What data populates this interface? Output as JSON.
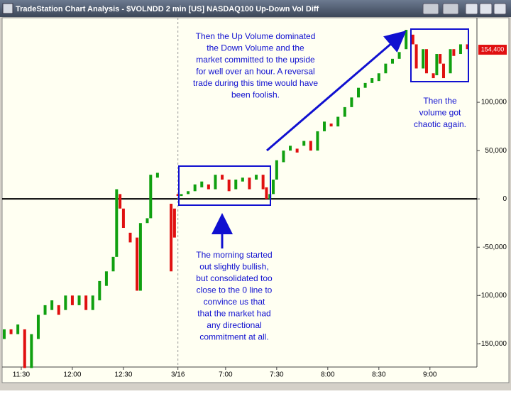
{
  "window_title": "TradeStation Chart Analysis - $VOLNDD 2 min [US] NASDAQ100 Up-Down Vol Diff",
  "chart_data": {
    "type": "bars",
    "bars": {
      "x": [
        0,
        2,
        4,
        6,
        8,
        10,
        12,
        14,
        16,
        18,
        20,
        22,
        24,
        26,
        28,
        30,
        32,
        33,
        34,
        35,
        37,
        39,
        40,
        42,
        43,
        45,
        49,
        50,
        51,
        52,
        54,
        56,
        58,
        60,
        62,
        64,
        66,
        68,
        70,
        72,
        74,
        76,
        77,
        78,
        79,
        80,
        82,
        84,
        86,
        88,
        90,
        92,
        94,
        96,
        98,
        100,
        102,
        104,
        106,
        108,
        110,
        112,
        114,
        116,
        118,
        120,
        121,
        123,
        124,
        126,
        127,
        128,
        129,
        131,
        132,
        134,
        136
      ],
      "open": [
        -145000,
        -135000,
        -140000,
        -135000,
        -175000,
        -145000,
        -120000,
        -115000,
        -110000,
        -115000,
        -100000,
        -110000,
        -100000,
        -115000,
        -105000,
        -90000,
        -75000,
        -60000,
        5000,
        -10000,
        -35000,
        -40000,
        -95000,
        -25000,
        -20000,
        22000,
        -5000,
        -10000,
        5000,
        3000,
        5000,
        8000,
        12000,
        15000,
        10000,
        25000,
        20000,
        10000,
        18000,
        22000,
        20000,
        25000,
        12000,
        0,
        5000,
        20000,
        38000,
        50000,
        52000,
        55000,
        60000,
        50000,
        70000,
        78000,
        75000,
        85000,
        95000,
        105000,
        115000,
        120000,
        122000,
        130000,
        140000,
        145000,
        155000,
        170000,
        160000,
        135000,
        155000,
        130000,
        128000,
        150000,
        140000,
        130000,
        155000,
        150000,
        160000
      ],
      "close": [
        -135000,
        -140000,
        -130000,
        -175000,
        -140000,
        -120000,
        -110000,
        -105000,
        -120000,
        -100000,
        -110000,
        -100000,
        -115000,
        -100000,
        -85000,
        -75000,
        -60000,
        10000,
        -10000,
        -30000,
        -45000,
        -95000,
        -25000,
        -20000,
        25000,
        27000,
        -75000,
        -40000,
        3000,
        5000,
        8000,
        15000,
        18000,
        10000,
        25000,
        20000,
        8000,
        20000,
        22000,
        10000,
        25000,
        10000,
        0,
        5000,
        20000,
        40000,
        50000,
        55000,
        48000,
        60000,
        50000,
        70000,
        80000,
        75000,
        85000,
        95000,
        105000,
        115000,
        120000,
        125000,
        130000,
        140000,
        145000,
        152000,
        175000,
        160000,
        135000,
        155000,
        130000,
        125000,
        150000,
        140000,
        125000,
        155000,
        148000,
        160000,
        155000
      ]
    },
    "up_color": "#10a010",
    "down_color": "#e01010",
    "xlim": [
      -0.2,
      138.8
    ],
    "xticks": [
      {
        "value": 5,
        "label": "11:30"
      },
      {
        "value": 20,
        "label": "12:00"
      },
      {
        "value": 35,
        "label": "12:30"
      },
      {
        "value": 51,
        "label": "3/16"
      },
      {
        "value": 65,
        "label": "7:00"
      },
      {
        "value": 80,
        "label": "7:30"
      },
      {
        "value": 95,
        "label": "8:00"
      },
      {
        "value": 110,
        "label": "8:30"
      },
      {
        "value": 125,
        "label": "9:00"
      }
    ],
    "ylim": [
      -174000,
      187500
    ],
    "yticks": [
      {
        "value": 100000,
        "label": "100,000"
      },
      {
        "value": 50000,
        "label": "50,000"
      },
      0,
      {
        "value": -50000,
        "label": "-50,000"
      },
      {
        "value": -100000,
        "label": "-100,000"
      },
      {
        "value": -150000,
        "label": "-150,000"
      }
    ],
    "last_value": {
      "value": 154400,
      "label": "154,400"
    },
    "annotations": [
      [
        "Then the Up Volume dominated",
        "the Down Volume and the",
        "market committed to the upside",
        "for well over an hour.  A reversal",
        "trade during this time would have",
        "been foolish."
      ],
      [
        "The morning started",
        "out slightly bullish,",
        "but consolidated too",
        "close to the 0 line to",
        "convince us that",
        "that the market had",
        "any directional",
        "commitment at all."
      ],
      [
        "Then the",
        "volume got",
        "chaotic again."
      ]
    ]
  }
}
